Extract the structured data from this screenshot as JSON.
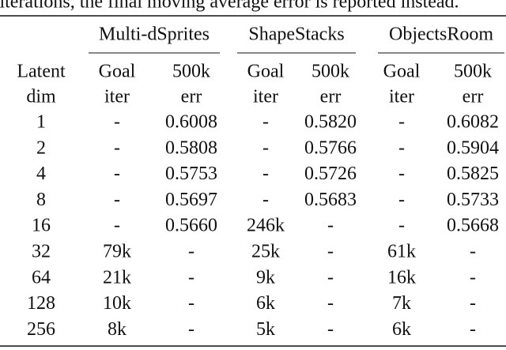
{
  "caption_fragment": "iterations, the final moving average error is reported instead.",
  "groups": [
    "Multi-dSprites",
    "ShapeStacks",
    "ObjectsRoom"
  ],
  "row_header": [
    "Latent",
    "dim"
  ],
  "subheaders": [
    [
      "Goal",
      "iter"
    ],
    [
      "500k",
      "err"
    ],
    [
      "Goal",
      "iter"
    ],
    [
      "500k",
      "err"
    ],
    [
      "Goal",
      "iter"
    ],
    [
      "500k",
      "err"
    ]
  ],
  "rows": [
    [
      "1",
      "-",
      "0.6008",
      "-",
      "0.5820",
      "-",
      "0.6082"
    ],
    [
      "2",
      "-",
      "0.5808",
      "-",
      "0.5766",
      "-",
      "0.5904"
    ],
    [
      "4",
      "-",
      "0.5753",
      "-",
      "0.5726",
      "-",
      "0.5825"
    ],
    [
      "8",
      "-",
      "0.5697",
      "-",
      "0.5683",
      "-",
      "0.5733"
    ],
    [
      "16",
      "-",
      "0.5660",
      "246k",
      "-",
      "-",
      "0.5668"
    ],
    [
      "32",
      "79k",
      "-",
      "25k",
      "-",
      "61k",
      "-"
    ],
    [
      "64",
      "21k",
      "-",
      "9k",
      "-",
      "16k",
      "-"
    ],
    [
      "128",
      "10k",
      "-",
      "6k",
      "-",
      "7k",
      "-"
    ],
    [
      "256",
      "8k",
      "-",
      "5k",
      "-",
      "6k",
      "-"
    ]
  ]
}
